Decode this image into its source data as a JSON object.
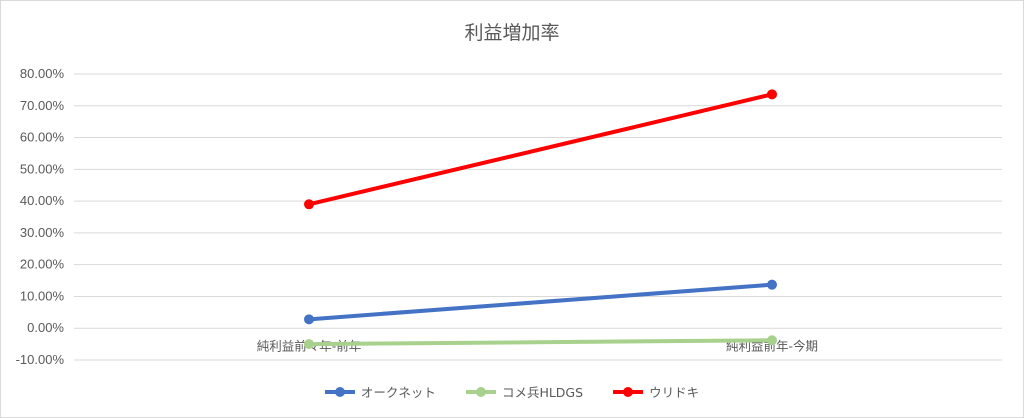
{
  "chart_data": {
    "type": "line",
    "title": "利益増加率",
    "categories": [
      "純利益前々年-前年",
      "純利益前年-今期"
    ],
    "yticks": [
      "80.00%",
      "70.00%",
      "60.00%",
      "50.00%",
      "40.00%",
      "30.00%",
      "20.00%",
      "10.00%",
      "0.00%",
      "-10.00%"
    ],
    "ylim": [
      -10,
      80
    ],
    "grid": true,
    "legend_position": "bottom",
    "series": [
      {
        "name": "オークネット",
        "values": [
          2.8,
          13.7
        ],
        "color": "#4472c4"
      },
      {
        "name": "コメ兵HLDGS",
        "values": [
          -5.0,
          -3.8
        ],
        "color": "#a9d18e"
      },
      {
        "name": "ウリドキ",
        "values": [
          39.0,
          73.6
        ],
        "color": "#ff0000"
      }
    ]
  }
}
